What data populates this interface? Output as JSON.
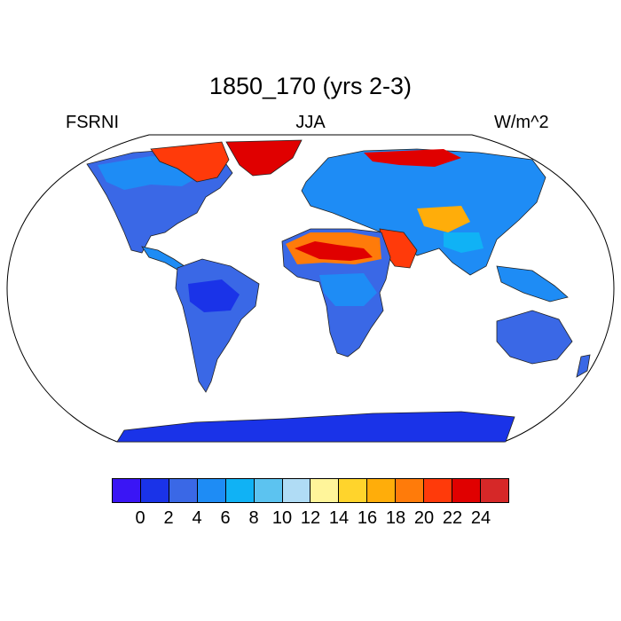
{
  "title": "1850_170 (yrs 2-3)",
  "left_label": "FSRNI",
  "center_label": "JJA",
  "right_label": "W/m^2",
  "colorbar": {
    "colors": [
      "#3a15f5",
      "#1a33e8",
      "#3a68e6",
      "#1e8cf5",
      "#10b2f5",
      "#5cc3f0",
      "#b0dcf5",
      "#fff59a",
      "#ffd42c",
      "#ffad0a",
      "#ff7b0a",
      "#ff3a0a",
      "#e00000",
      "#d62828"
    ],
    "labels": [
      "0",
      "2",
      "4",
      "6",
      "8",
      "10",
      "12",
      "14",
      "16",
      "18",
      "20",
      "22",
      "24"
    ]
  },
  "map": {
    "projection": "robinson",
    "coastline_color": "#000000",
    "ocean_color": "#ffffff"
  }
}
